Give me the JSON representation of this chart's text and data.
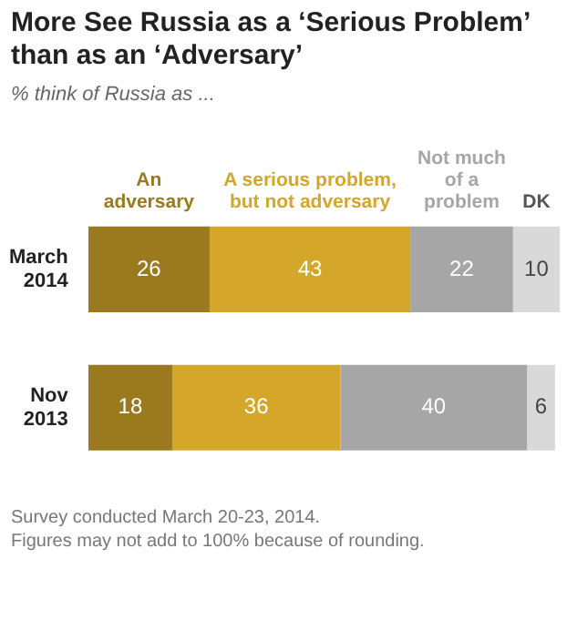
{
  "chart_data": {
    "type": "bar",
    "orientation": "horizontal",
    "stacked": true,
    "title": "More See Russia as a ‘Serious Problem’ than as an ‘Adversary’",
    "subtitle": "% think of Russia as ...",
    "categories": [
      "March 2014",
      "Nov 2013"
    ],
    "series": [
      {
        "name": "An adversary",
        "color": "#9b7a1f",
        "values": [
          26,
          18
        ]
      },
      {
        "name": "A serious problem, but not adversary",
        "color": "#d4a72b",
        "values": [
          43,
          36
        ]
      },
      {
        "name": "Not much of a problem",
        "color": "#a6a6a6",
        "values": [
          22,
          40
        ]
      },
      {
        "name": "DK",
        "color": "#d9d9d9",
        "values": [
          10,
          6
        ]
      }
    ],
    "data_labels": true,
    "legend": "top",
    "tick_labels": "y",
    "annotations": [
      "Survey conducted March 20-23, 2014.",
      "Figures may not add to 100% because of rounding."
    ]
  }
}
